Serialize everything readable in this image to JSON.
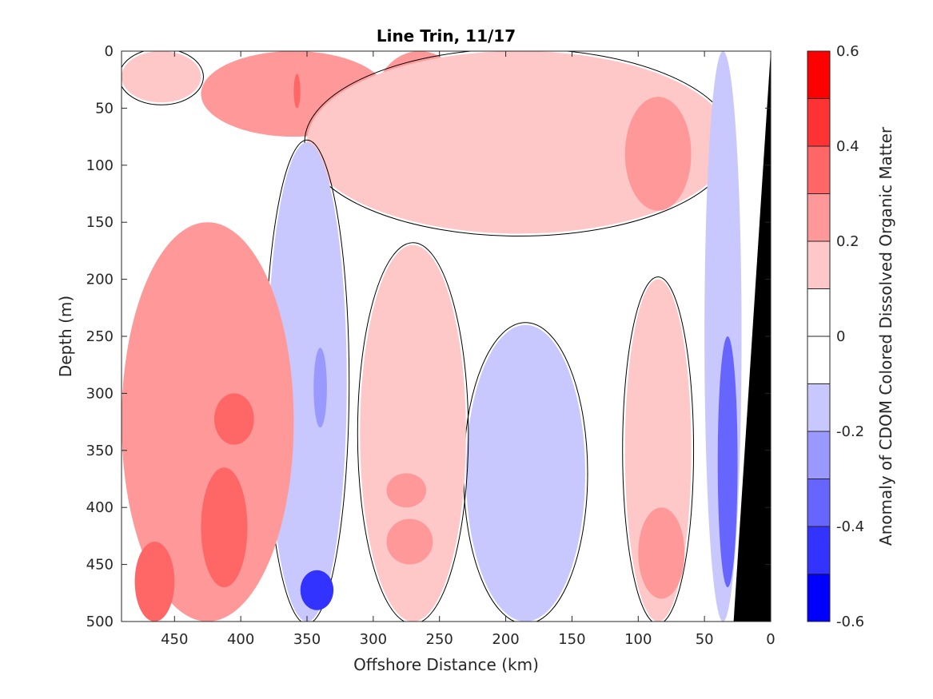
{
  "chart_data": {
    "type": "heatmap",
    "title": "Line Trin, 11/17",
    "xlabel": "Offshore Distance (km)",
    "ylabel": "Depth (m)",
    "colorbar_label": "Anomaly of CDOM Colored Dissolved Organic Matter",
    "xlim": [
      490,
      0
    ],
    "ylim": [
      0,
      500
    ],
    "x_reversed": true,
    "y_reversed": true,
    "xticks": [
      450,
      400,
      350,
      300,
      250,
      200,
      150,
      100,
      50,
      0
    ],
    "xtick_labels": [
      "450",
      "400",
      "350",
      "300",
      "250",
      "200",
      "150",
      "100",
      "50",
      "0"
    ],
    "yticks": [
      0,
      50,
      100,
      150,
      200,
      250,
      300,
      350,
      400,
      450,
      500
    ],
    "ytick_labels": [
      "0",
      "50",
      "100",
      "150",
      "200",
      "250",
      "300",
      "350",
      "400",
      "450",
      "500"
    ],
    "color_range": [
      -0.6,
      0.6
    ],
    "colorbar_ticks": [
      0.6,
      0.4,
      0.2,
      0,
      -0.2,
      -0.4,
      -0.6
    ],
    "colorbar_tick_labels": [
      "0.6",
      "0.4",
      "0.2",
      "0",
      "-0.2",
      "-0.4",
      "-0.6"
    ],
    "contour_levels": [
      -0.6,
      -0.5,
      -0.4,
      -0.3,
      -0.2,
      -0.1,
      0,
      0.1,
      0.2,
      0.3,
      0.4,
      0.5,
      0.6
    ],
    "zero_contour": true,
    "grid": false,
    "colormap": {
      "negative": "#0000ff",
      "zero": "#ffffff",
      "positive": "#ff0000"
    },
    "bathymetry": {
      "color": "#000000",
      "points": [
        [
          0,
          0
        ],
        [
          0,
          500
        ],
        [
          28,
          500
        ]
      ]
    },
    "features": [
      {
        "kind": "positive",
        "x": [
          490,
          430
        ],
        "depth": [
          0,
          45
        ],
        "value": 0.17
      },
      {
        "kind": "positive",
        "x": [
          430,
          290
        ],
        "depth": [
          0,
          75
        ],
        "value": 0.22
      },
      {
        "kind": "positive",
        "x": [
          360,
          355
        ],
        "depth": [
          20,
          50
        ],
        "value": 0.32
      },
      {
        "kind": "positive",
        "x": [
          300,
          230
        ],
        "depth": [
          0,
          95
        ],
        "value": 0.24
      },
      {
        "kind": "positive",
        "x": [
          275,
          255
        ],
        "depth": [
          10,
          40
        ],
        "value": 0.36
      },
      {
        "kind": "positive",
        "x": [
          350,
          30
        ],
        "depth": [
          0,
          160
        ],
        "value": 0.12
      },
      {
        "kind": "positive",
        "x": [
          110,
          60
        ],
        "depth": [
          40,
          140
        ],
        "value": 0.24
      },
      {
        "kind": "negative",
        "x": [
          380,
          320
        ],
        "depth": [
          80,
          500
        ],
        "value": -0.14
      },
      {
        "kind": "negative",
        "x": [
          345,
          335
        ],
        "depth": [
          260,
          330
        ],
        "value": -0.24
      },
      {
        "kind": "negative",
        "x": [
          355,
          330
        ],
        "depth": [
          455,
          490
        ],
        "value": -0.4
      },
      {
        "kind": "negative",
        "x": [
          50,
          22
        ],
        "depth": [
          0,
          500
        ],
        "value": -0.17
      },
      {
        "kind": "negative",
        "x": [
          40,
          25
        ],
        "depth": [
          250,
          470
        ],
        "value": -0.3
      },
      {
        "kind": "negative",
        "x": [
          230,
          140
        ],
        "depth": [
          240,
          500
        ],
        "value": -0.14
      },
      {
        "kind": "positive",
        "x": [
          490,
          360
        ],
        "depth": [
          150,
          500
        ],
        "value": 0.2
      },
      {
        "kind": "positive",
        "x": [
          420,
          390
        ],
        "depth": [
          300,
          345
        ],
        "value": 0.37
      },
      {
        "kind": "positive",
        "x": [
          430,
          395
        ],
        "depth": [
          365,
          470
        ],
        "value": 0.36
      },
      {
        "kind": "positive",
        "x": [
          480,
          450
        ],
        "depth": [
          430,
          500
        ],
        "value": 0.33
      },
      {
        "kind": "positive",
        "x": [
          310,
          230
        ],
        "depth": [
          170,
          500
        ],
        "value": 0.17
      },
      {
        "kind": "positive",
        "x": [
          290,
          260
        ],
        "depth": [
          370,
          400
        ],
        "value": 0.3
      },
      {
        "kind": "positive",
        "x": [
          290,
          255
        ],
        "depth": [
          410,
          450
        ],
        "value": 0.28
      },
      {
        "kind": "positive",
        "x": [
          110,
          60
        ],
        "depth": [
          200,
          500
        ],
        "value": 0.16
      },
      {
        "kind": "positive",
        "x": [
          100,
          65
        ],
        "depth": [
          400,
          480
        ],
        "value": 0.22
      }
    ]
  }
}
